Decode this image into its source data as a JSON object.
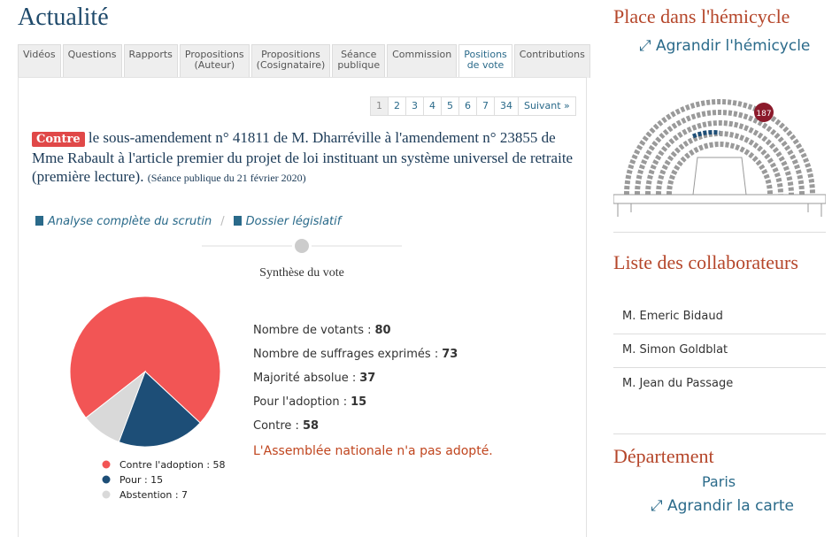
{
  "header": {
    "title": "Actualité"
  },
  "tabs": [
    [
      "Vidéos"
    ],
    [
      "Questions"
    ],
    [
      "Rapports"
    ],
    [
      "Propositions",
      "(Auteur)"
    ],
    [
      "Propositions",
      "(Cosignataire)"
    ],
    [
      "Séance",
      "publique"
    ],
    [
      "Commission"
    ],
    [
      "Positions",
      "de vote"
    ],
    [
      "Contributions"
    ]
  ],
  "active_tab": 7,
  "pagination": {
    "pages": [
      1,
      2,
      3,
      4,
      5,
      6,
      7,
      34
    ],
    "current": 0,
    "next": "Suivant »"
  },
  "vote": {
    "badge": "Contre",
    "text": "le sous-amendement n° 41811 de M. Dharréville à l'amendement n° 23855 de Mme Rabault à l'article premier du projet de loi instituant un système universel de retraite (première lecture).",
    "session": "(Séance publique du 21 février 2020)"
  },
  "links": [
    "Analyse complète du scrutin",
    "Dossier législatif"
  ],
  "chart_data": {
    "type": "pie",
    "title": "Synthèse du vote",
    "values": [
      58,
      15,
      7
    ],
    "value_labels": [
      "Contre l'adoption : 58",
      "Pour : 15",
      "Abstention : 7"
    ],
    "colors": [
      "#f25555",
      "#1d4e77",
      "#d9d9d9"
    ]
  },
  "stats": [
    {
      "label": "Nombre de votants :",
      "value": 80
    },
    {
      "label": "Nombre de suffrages exprimés :",
      "value": 73
    },
    {
      "label": "Majorité absolue :",
      "value": 37
    },
    {
      "label": "Pour l'adoption :",
      "value": 15
    },
    {
      "label": "Contre :",
      "value": 58
    }
  ],
  "result": "L'Assemblée nationale n'a pas adopté.",
  "sidebar": {
    "hemicycle_title": "Place dans l'hémicycle",
    "hemicycle_link": "Agrandir l'hémicycle",
    "seat": 187,
    "collab_title": "Liste des collaborateurs",
    "collaborators": [
      "M. Emeric Bidaud",
      "M. Simon Goldblat",
      "M. Jean du Passage"
    ],
    "dept_title": "Département",
    "dept": "Paris",
    "map_link": "Agrandir la carte"
  }
}
